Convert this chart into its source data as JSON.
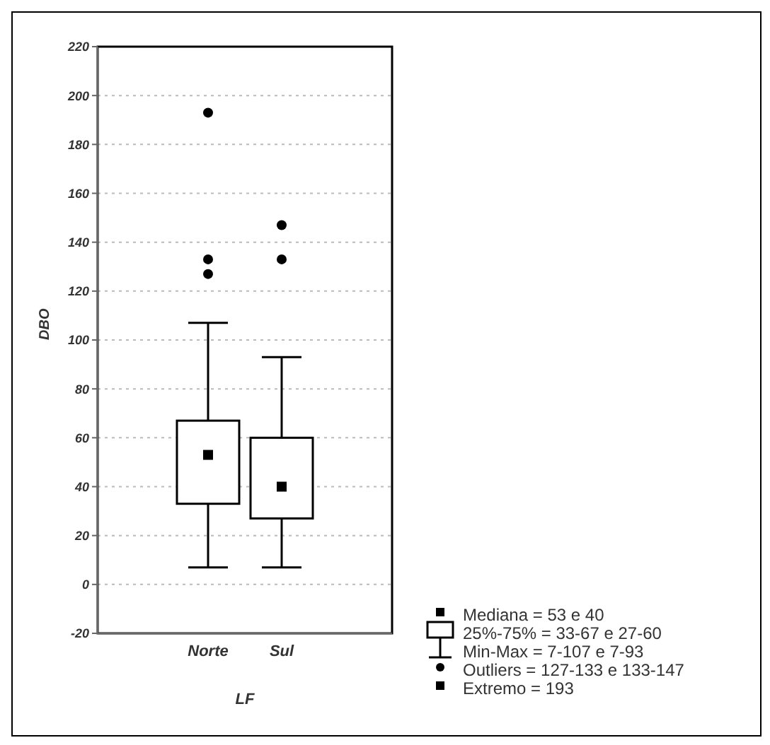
{
  "chart_data": {
    "type": "box",
    "xlabel": "LF",
    "ylabel": "DBO",
    "categories": [
      "Norte",
      "Sul"
    ],
    "boxes": [
      {
        "low": 7,
        "q1": 33,
        "median": 53,
        "q3": 67,
        "high": 107,
        "outliers": [
          127,
          133,
          193
        ]
      },
      {
        "low": 7,
        "q1": 27,
        "median": 40,
        "q3": 60,
        "high": 93,
        "outliers": [
          133,
          147
        ]
      }
    ],
    "ylim": [
      -20,
      220
    ],
    "yticks": [
      -20,
      0,
      20,
      40,
      60,
      80,
      100,
      120,
      140,
      160,
      180,
      200,
      220
    ],
    "grid": "y",
    "annotations": [
      "Mediana = 53 e 40",
      "25%-75% = 33-67 e 27-60",
      "Min-Max = 7-107 e 7-93",
      "Outliers = 127-133 e 133-147",
      "Extremo = 193"
    ]
  }
}
